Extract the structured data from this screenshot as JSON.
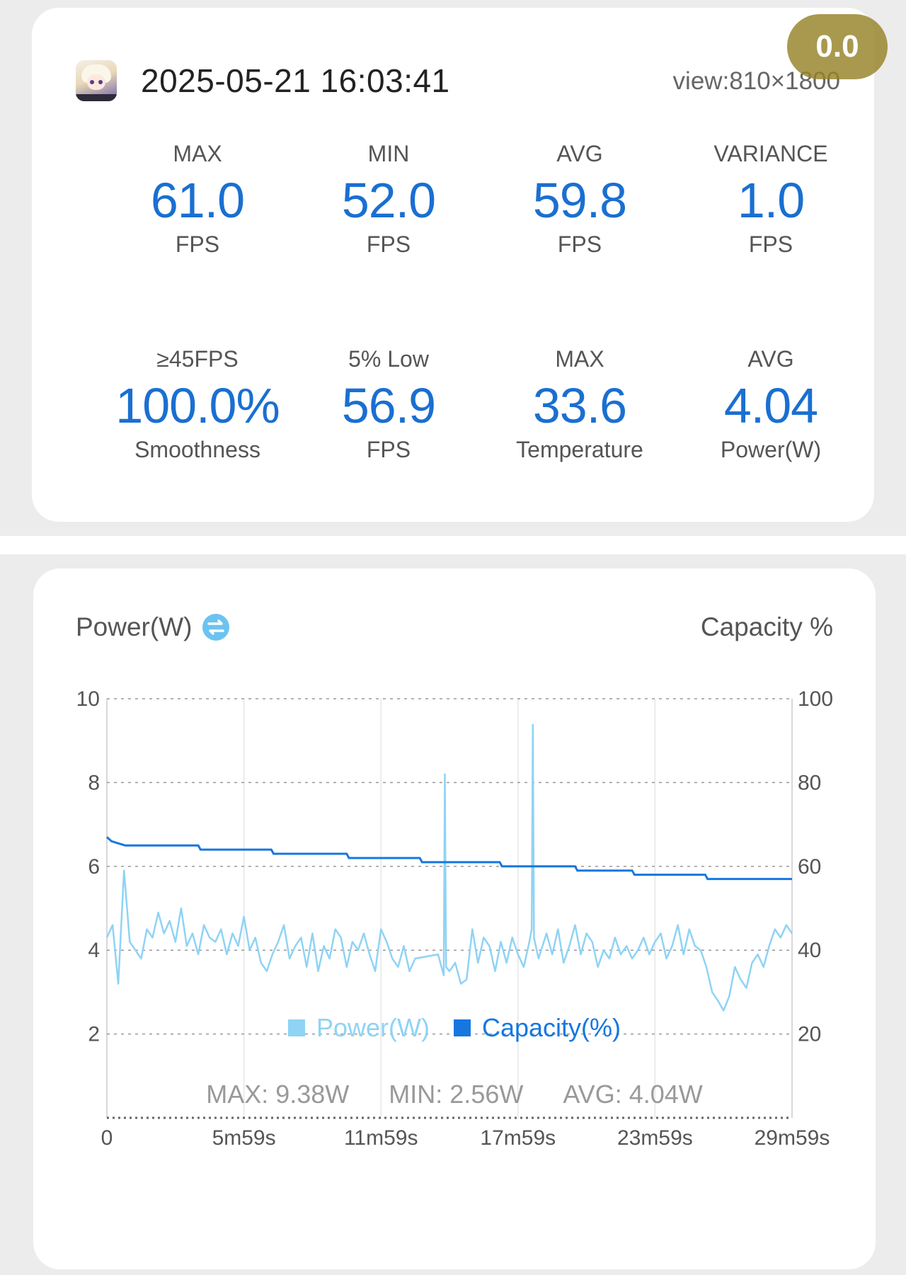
{
  "header": {
    "timestamp": "2025-05-21 16:03:41",
    "view": "view:810×1800",
    "score_badge": "0.0"
  },
  "metrics_row1": [
    {
      "label": "MAX",
      "value": "61.0",
      "unit": "FPS"
    },
    {
      "label": "MIN",
      "value": "52.0",
      "unit": "FPS"
    },
    {
      "label": "AVG",
      "value": "59.8",
      "unit": "FPS"
    },
    {
      "label": "VARIANCE",
      "value": "1.0",
      "unit": "FPS"
    }
  ],
  "metrics_row2": [
    {
      "label": "≥45FPS",
      "value": "100.0%",
      "unit": "Smoothness"
    },
    {
      "label": "5% Low",
      "value": "56.9",
      "unit": "FPS"
    },
    {
      "label": "MAX",
      "value": "33.6",
      "unit": "Temperature"
    },
    {
      "label": "AVG",
      "value": "4.04",
      "unit": "Power(W)"
    }
  ],
  "chart_card": {
    "left_title": "Power(W)",
    "right_title": "Capacity %",
    "legend": [
      {
        "label": "Power(W)",
        "color": "#8fd3f5"
      },
      {
        "label": "Capacity(%)",
        "color": "#1677e0"
      }
    ],
    "summary": {
      "max": "MAX: 9.38W",
      "min": "MIN: 2.56W",
      "avg": "AVG: 4.04W"
    }
  },
  "chart_data": {
    "type": "line",
    "x_tick_labels": [
      "0",
      "5m59s",
      "11m59s",
      "17m59s",
      "23m59s",
      "29m59s"
    ],
    "x_range_minutes": [
      0,
      30
    ],
    "y_left": {
      "label": "Power(W)",
      "ticks": [
        "2",
        "4",
        "6",
        "8",
        "10"
      ],
      "range": [
        0,
        10
      ]
    },
    "y_right": {
      "label": "Capacity %",
      "ticks": [
        "20",
        "40",
        "60",
        "80",
        "100"
      ],
      "range": [
        0,
        100
      ]
    },
    "grid": true,
    "legend_position": "bottom",
    "series": [
      {
        "name": "Power(W)",
        "axis": "left",
        "color": "#8fd3f5",
        "x": [
          0,
          0.25,
          0.5,
          0.75,
          1.0,
          1.25,
          1.5,
          1.75,
          2.0,
          2.25,
          2.5,
          2.75,
          3.0,
          3.25,
          3.5,
          3.75,
          4.0,
          4.25,
          4.5,
          4.75,
          5.0,
          5.25,
          5.5,
          5.75,
          6.0,
          6.25,
          6.5,
          6.75,
          7.0,
          7.25,
          7.5,
          7.75,
          8.0,
          8.25,
          8.5,
          8.75,
          9.0,
          9.25,
          9.5,
          9.75,
          10.0,
          10.25,
          10.5,
          10.75,
          11.0,
          11.25,
          11.5,
          11.75,
          12.0,
          12.25,
          12.5,
          12.75,
          13.0,
          13.25,
          13.5,
          14.5,
          14.75,
          14.8,
          14.85,
          15.0,
          15.25,
          15.5,
          15.75,
          16.0,
          16.25,
          16.5,
          16.75,
          17.0,
          17.25,
          17.5,
          17.75,
          18.0,
          18.25,
          18.5,
          18.6,
          18.65,
          18.7,
          18.9,
          19.25,
          19.5,
          19.75,
          20.0,
          20.25,
          20.5,
          20.75,
          21.0,
          21.25,
          21.5,
          21.75,
          22.0,
          22.25,
          22.5,
          22.75,
          23.0,
          23.25,
          23.5,
          23.75,
          24.0,
          24.25,
          24.5,
          24.75,
          25.0,
          25.25,
          25.5,
          25.75,
          26.0,
          26.25,
          26.5,
          26.75,
          27.0,
          27.25,
          27.5,
          27.75,
          28.0,
          28.25,
          28.5,
          28.75,
          29.0,
          29.25,
          29.5,
          29.75,
          30.0
        ],
        "y": [
          4.3,
          4.6,
          3.2,
          5.9,
          4.2,
          4.0,
          3.8,
          4.5,
          4.3,
          4.9,
          4.4,
          4.7,
          4.2,
          5.0,
          4.1,
          4.4,
          3.9,
          4.6,
          4.3,
          4.2,
          4.5,
          3.9,
          4.4,
          4.1,
          4.8,
          4.0,
          4.3,
          3.7,
          3.5,
          3.9,
          4.2,
          4.6,
          3.8,
          4.1,
          4.3,
          3.6,
          4.4,
          3.5,
          4.1,
          3.8,
          4.5,
          4.3,
          3.6,
          4.2,
          4.0,
          4.4,
          3.9,
          3.5,
          4.5,
          4.2,
          3.8,
          3.6,
          4.1,
          3.5,
          3.8,
          3.9,
          3.4,
          8.2,
          3.6,
          3.5,
          3.7,
          3.2,
          3.3,
          4.5,
          3.7,
          4.3,
          4.1,
          3.5,
          4.2,
          3.7,
          4.3,
          3.9,
          3.6,
          4.2,
          4.5,
          9.38,
          4.3,
          3.8,
          4.4,
          3.9,
          4.5,
          3.7,
          4.1,
          4.6,
          3.9,
          4.4,
          4.2,
          3.6,
          4.0,
          3.8,
          4.3,
          3.9,
          4.1,
          3.8,
          4.0,
          4.3,
          3.9,
          4.2,
          4.4,
          3.8,
          4.1,
          4.6,
          3.9,
          4.5,
          4.1,
          4.0,
          3.6,
          3.0,
          2.8,
          2.56,
          2.9,
          3.6,
          3.3,
          3.1,
          3.7,
          3.9,
          3.6,
          4.1,
          4.5,
          4.3,
          4.6,
          4.4
        ]
      },
      {
        "name": "Capacity(%)",
        "axis": "right",
        "color": "#1677e0",
        "x": [
          0,
          0.2,
          0.8,
          4.0,
          4.1,
          7.2,
          7.3,
          10.5,
          10.6,
          13.7,
          13.8,
          17.2,
          17.3,
          20.5,
          20.6,
          23.0,
          23.1,
          26.2,
          26.3,
          30.0
        ],
        "y": [
          67,
          66,
          65,
          65,
          64,
          64,
          63,
          63,
          62,
          62,
          61,
          61,
          60,
          60,
          59,
          59,
          58,
          58,
          57,
          57
        ]
      }
    ]
  }
}
